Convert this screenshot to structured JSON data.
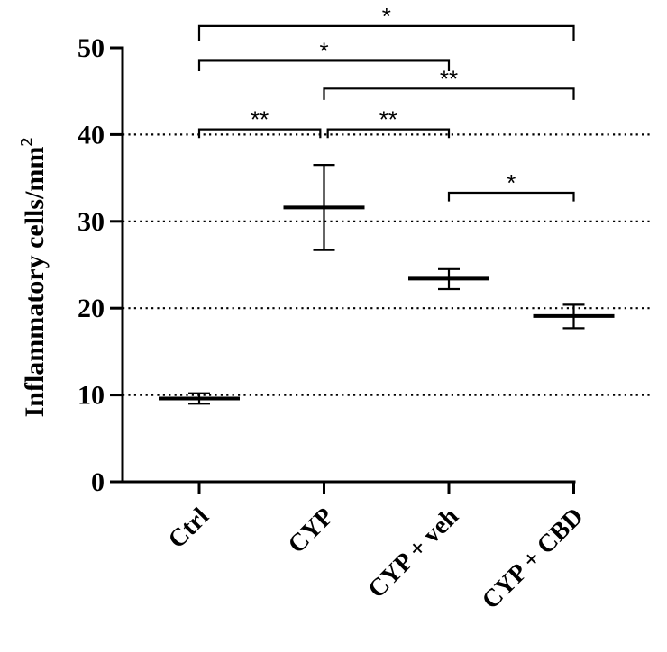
{
  "chart_data": {
    "type": "scatter",
    "title": "",
    "xlabel": "",
    "ylabel": "Inflammatory cells/mm",
    "ylabel_superscript": "2",
    "ylim": [
      0,
      50
    ],
    "yticks": [
      0,
      10,
      20,
      30,
      40,
      50
    ],
    "grid": {
      "horizontal_dotted_at": [
        10,
        20,
        30,
        40
      ]
    },
    "categories": [
      "Ctrl",
      "CYP",
      "CYP + veh",
      "CYP + CBD"
    ],
    "series": [
      {
        "mean": [
          9.6,
          31.6,
          23.4,
          19.1
        ],
        "error_low": [
          9.0,
          26.7,
          22.2,
          17.7
        ],
        "error_high": [
          10.2,
          36.5,
          24.5,
          20.4
        ]
      }
    ],
    "significance": [
      {
        "from": "Ctrl",
        "to": "CYP + CBD",
        "label": "*",
        "level": 52.5,
        "drop_to": 50.8
      },
      {
        "from": "Ctrl",
        "to": "CYP + veh",
        "label": "*",
        "level": 48.5,
        "drop_to": 47.3
      },
      {
        "from": "CYP",
        "to": "CYP + CBD",
        "label": "**",
        "level": 45.3,
        "drop_to": 44.0
      },
      {
        "from": "Ctrl",
        "to": "CYP",
        "label": "**",
        "level": 40.6,
        "drop_to": 39.6,
        "to_offset": -0.03
      },
      {
        "from": "CYP",
        "to": "CYP + veh",
        "label": "**",
        "level": 40.6,
        "drop_to": 39.6,
        "from_offset": 0.03
      },
      {
        "from": "CYP + veh",
        "to": "CYP + CBD",
        "label": "*",
        "level": 33.3,
        "drop_to": 32.3
      }
    ]
  }
}
